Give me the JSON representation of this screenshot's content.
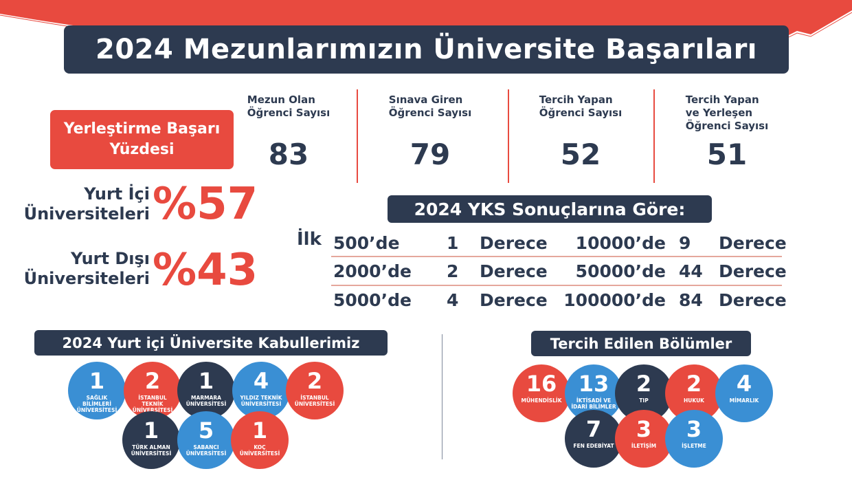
{
  "colors": {
    "navy": "#2d3a50",
    "red": "#e84a3f",
    "blue": "#3a8fd4"
  },
  "title": "2024 Mezunlarımızın Üniversite Başarıları",
  "placement_badge": {
    "line1": "Yerleştirme Başarı",
    "line2": "Yüzdesi"
  },
  "domestic": {
    "line1": "Yurt İçi",
    "line2": "Üniversiteleri",
    "value": "%57"
  },
  "abroad": {
    "line1": "Yurt Dışı",
    "line2": "Üniversiteleri",
    "value": "%43"
  },
  "stats": [
    {
      "label_lines": [
        "Mezun Olan",
        "Öğrenci Sayısı"
      ],
      "value": "83"
    },
    {
      "label_lines": [
        "Sınava Giren",
        "Öğrenci Sayısı"
      ],
      "value": "79"
    },
    {
      "label_lines": [
        "Tercih Yapan",
        "Öğrenci Sayısı"
      ],
      "value": "52"
    },
    {
      "label_lines": [
        "Tercih Yapan",
        "ve Yerleşen",
        "Öğrenci Sayısı"
      ],
      "value": "51"
    }
  ],
  "yks": {
    "heading": "2024 YKS Sonuçlarına Göre:",
    "prefix": "İlk",
    "rows": [
      {
        "left_rank": "500’de",
        "left_count": "1",
        "left_unit": "Derece",
        "right_rank": "10000’de",
        "right_count": "9",
        "right_unit": "Derece"
      },
      {
        "left_rank": "2000’de",
        "left_count": "2",
        "left_unit": "Derece",
        "right_rank": "50000’de",
        "right_count": "44",
        "right_unit": "Derece"
      },
      {
        "left_rank": "5000’de",
        "left_count": "4",
        "left_unit": "Derece",
        "right_rank": "100000’de",
        "right_count": "84",
        "right_unit": "Derece"
      }
    ]
  },
  "universities": {
    "heading": "2024 Yurt içi Üniversite Kabullerimiz",
    "items": [
      {
        "count": "1",
        "name_lines": [
          "SAĞLIK BİLİMLERİ",
          "ÜNİVERSİTESİ"
        ],
        "color": "blue"
      },
      {
        "count": "2",
        "name_lines": [
          "İSTANBUL TEKNİK",
          "ÜNİVERSİTESİ"
        ],
        "color": "red"
      },
      {
        "count": "1",
        "name_lines": [
          "MARMARA",
          "ÜNİVERSİTESİ"
        ],
        "color": "navy"
      },
      {
        "count": "4",
        "name_lines": [
          "YILDIZ TEKNİK",
          "ÜNİVERSİTESİ"
        ],
        "color": "blue"
      },
      {
        "count": "2",
        "name_lines": [
          "İSTANBUL",
          "ÜNİVERSİTESİ"
        ],
        "color": "red"
      },
      {
        "count": "1",
        "name_lines": [
          "TÜRK ALMAN",
          "ÜNİVERSİTESİ"
        ],
        "color": "navy"
      },
      {
        "count": "5",
        "name_lines": [
          "SABANCI",
          "ÜNİVERSİTESİ"
        ],
        "color": "blue"
      },
      {
        "count": "1",
        "name_lines": [
          "KOÇ",
          "ÜNİVERSİTESİ"
        ],
        "color": "red"
      }
    ]
  },
  "departments": {
    "heading": "Tercih Edilen Bölümler",
    "items": [
      {
        "count": "16",
        "name_lines": [
          "MÜHENDİSLİK"
        ],
        "color": "red"
      },
      {
        "count": "13",
        "name_lines": [
          "İKTİSADİ VE",
          "İDARİ BİLİMLER"
        ],
        "color": "blue"
      },
      {
        "count": "2",
        "name_lines": [
          "TIP"
        ],
        "color": "navy"
      },
      {
        "count": "2",
        "name_lines": [
          "HUKUK"
        ],
        "color": "red"
      },
      {
        "count": "4",
        "name_lines": [
          "MİMARLIK"
        ],
        "color": "blue"
      },
      {
        "count": "7",
        "name_lines": [
          "FEN EDEBİYAT"
        ],
        "color": "navy"
      },
      {
        "count": "3",
        "name_lines": [
          "İLETİŞİM"
        ],
        "color": "red"
      },
      {
        "count": "3",
        "name_lines": [
          "İŞLETME"
        ],
        "color": "blue"
      }
    ]
  }
}
